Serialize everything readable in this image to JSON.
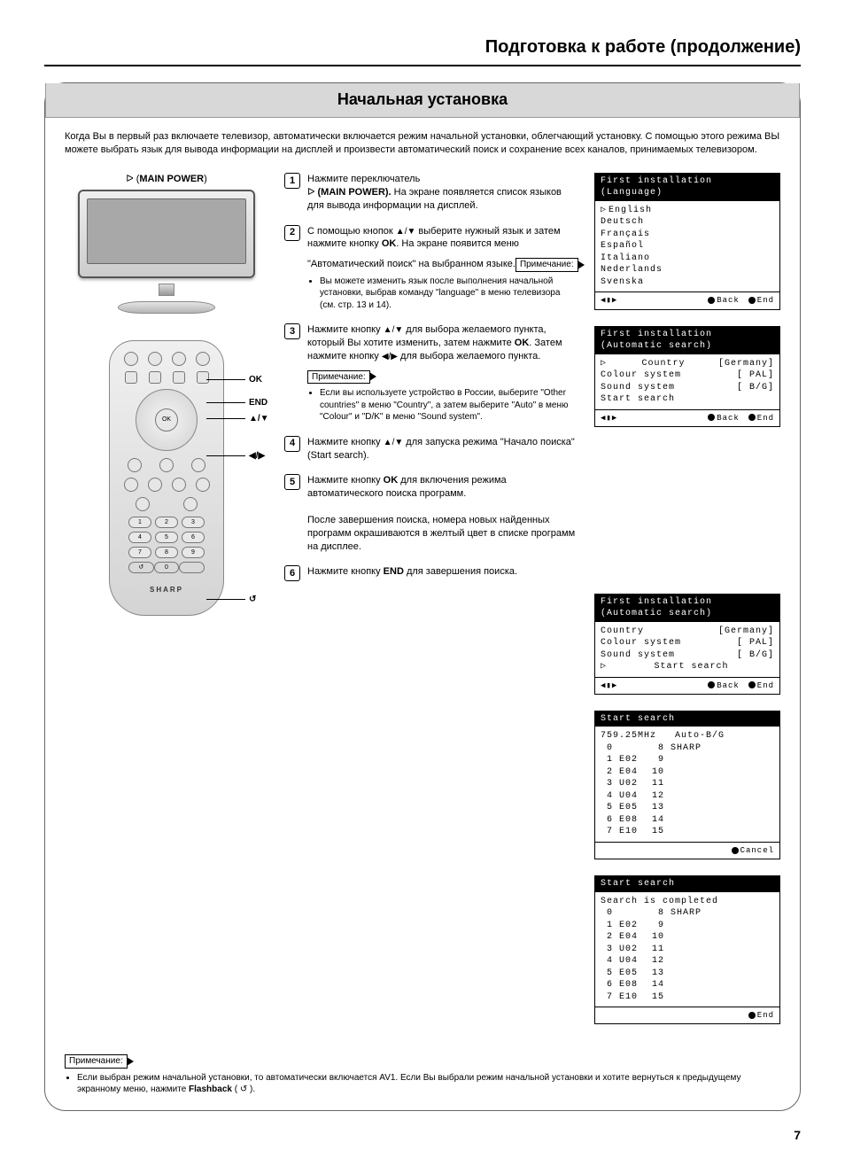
{
  "page_title": "Подготовка к работе (продолжение)",
  "section_title": "Начальная установка",
  "intro": "Когда Вы в первый раз включаете телевизор, автоматически включается режим начальной установки, облегчающий установку. С помощью этого режима ВЫ можете выбрать язык для вывода информации на дисплей и произвести автоматический поиск и сохранение всех каналов, принимаемых телевизором.",
  "tv_label_prefix": "ᐅ (",
  "tv_label_bold": "MAIN POWER",
  "tv_label_suffix": ")",
  "remote": {
    "labels": {
      "ok": "OK",
      "end": "END",
      "ud": "▲/▼",
      "lr": "◀/▶",
      "fb": "↺"
    },
    "brand": "SHARP"
  },
  "steps": [
    {
      "n": "1",
      "html": "Нажмите переключатель<br>ᐅ <b>(MAIN POWER).</b> На экране появляется список языков для вывода информации на дисплей."
    },
    {
      "n": "2",
      "html": "С помощью кнопок <span class='arrow'>▲/▼</span> выберите нужный язык и затем нажмите кнопку <b>OK</b>. На экране появится меню \"Автоматический поиск\" на выбранном языке.",
      "note_label": "Примечание:",
      "note": "Вы можете изменить язык после выполнения начальной установки, выбрав команду \"language\" в меню телевизора (см. стр. 13 и 14)."
    },
    {
      "n": "3",
      "html": "Нажмите кнопку <span class='arrow'>▲/▼</span> для выбора желаемого пункта, который Вы хотите изменить, затем нажмите <b>OK</b>. Затем нажмите кнопку <span class='arrow'>◀/▶</span> для выбора желаемого пункта.",
      "note_label": "Примечание:",
      "note": "Если вы используете устройство в России, выберите \"Other countries\" в меню \"Country\", а затем выберите \"Auto\"  в меню \"Colour\" и \"D/K\" в меню \"Sound system\"."
    },
    {
      "n": "4",
      "html": "Нажмите кнопку <span class='arrow'>▲/▼</span> для запуска режима \"Начало поиска\" (Start search)."
    },
    {
      "n": "5",
      "html": "Нажмите кнопку <b>OK</b> для включения режима автоматического поиска программ.<br><br>После завершения поиска, номера новых найденных программ окрашиваются в желтый цвет в списке программ на дисплее."
    },
    {
      "n": "6",
      "html": "Нажмите кнопку <b>END</b> для завершения поиска."
    }
  ],
  "osd_lang": {
    "title": "First installation",
    "subtitle": "(Language)",
    "items": [
      "English",
      "Deutsch",
      "Français",
      "Español",
      "Italiano",
      "Nederlands",
      "Svenska"
    ],
    "foot_left": "◀▮▶",
    "foot_back": "Back",
    "foot_end": "End"
  },
  "osd_auto1": {
    "title": "First installation",
    "subtitle": "(Automatic search)",
    "rows": [
      [
        "Country",
        "[Germany]"
      ],
      [
        "Colour system",
        "[    PAL]"
      ],
      [
        "Sound system",
        "[    B/G]"
      ],
      [
        "Start search",
        ""
      ]
    ],
    "sel": 0,
    "foot_left": "◀▮▶",
    "foot_back": "Back",
    "foot_end": "End"
  },
  "osd_auto2": {
    "title": "First installation",
    "subtitle": "(Automatic search)",
    "rows": [
      [
        "Country",
        "[Germany]"
      ],
      [
        "Colour system",
        "[    PAL]"
      ],
      [
        "Sound system",
        "[    B/G]"
      ],
      [
        "Start search",
        ""
      ]
    ],
    "sel": 3,
    "foot_left": "◀▮▶",
    "foot_back": "Back",
    "foot_end": "End"
  },
  "osd_search1": {
    "title": "Start search",
    "line": "759.25MHz   Auto-B/G",
    "left": [
      [
        "0",
        ""
      ],
      [
        "1",
        "E02"
      ],
      [
        "2",
        "E04"
      ],
      [
        "3",
        "U02"
      ],
      [
        "4",
        "U04"
      ],
      [
        "5",
        "E05"
      ],
      [
        "6",
        "E08"
      ],
      [
        "7",
        "E10"
      ]
    ],
    "right": [
      [
        "8",
        "SHARP"
      ],
      [
        "9",
        ""
      ],
      [
        "10",
        ""
      ],
      [
        "11",
        ""
      ],
      [
        "12",
        ""
      ],
      [
        "13",
        ""
      ],
      [
        "14",
        ""
      ],
      [
        "15",
        ""
      ]
    ],
    "foot": "Cancel"
  },
  "osd_search2": {
    "title": "Start search",
    "line": "Search is completed",
    "left": [
      [
        "0",
        ""
      ],
      [
        "1",
        "E02"
      ],
      [
        "2",
        "E04"
      ],
      [
        "3",
        "U02"
      ],
      [
        "4",
        "U04"
      ],
      [
        "5",
        "E05"
      ],
      [
        "6",
        "E08"
      ],
      [
        "7",
        "E10"
      ]
    ],
    "right": [
      [
        "8",
        "SHARP"
      ],
      [
        "9",
        ""
      ],
      [
        "10",
        ""
      ],
      [
        "11",
        ""
      ],
      [
        "12",
        ""
      ],
      [
        "13",
        ""
      ],
      [
        "14",
        ""
      ],
      [
        "15",
        ""
      ]
    ],
    "foot": "End"
  },
  "bottom_note_label": "Примечание:",
  "bottom_note_a": "Если выбран режим начальной установки, то автоматически включается AV1. Если Вы выбрали режим начальной установки и хотите вернуться к предыдущему экранному меню, нажмите ",
  "bottom_note_b": "Flashback",
  "bottom_note_c": " ( ↺ ).",
  "page_number": "7",
  "colors": {
    "frame_bg": "#ffffff",
    "titlebar": "#d8d8d8",
    "osd_black": "#000000"
  }
}
